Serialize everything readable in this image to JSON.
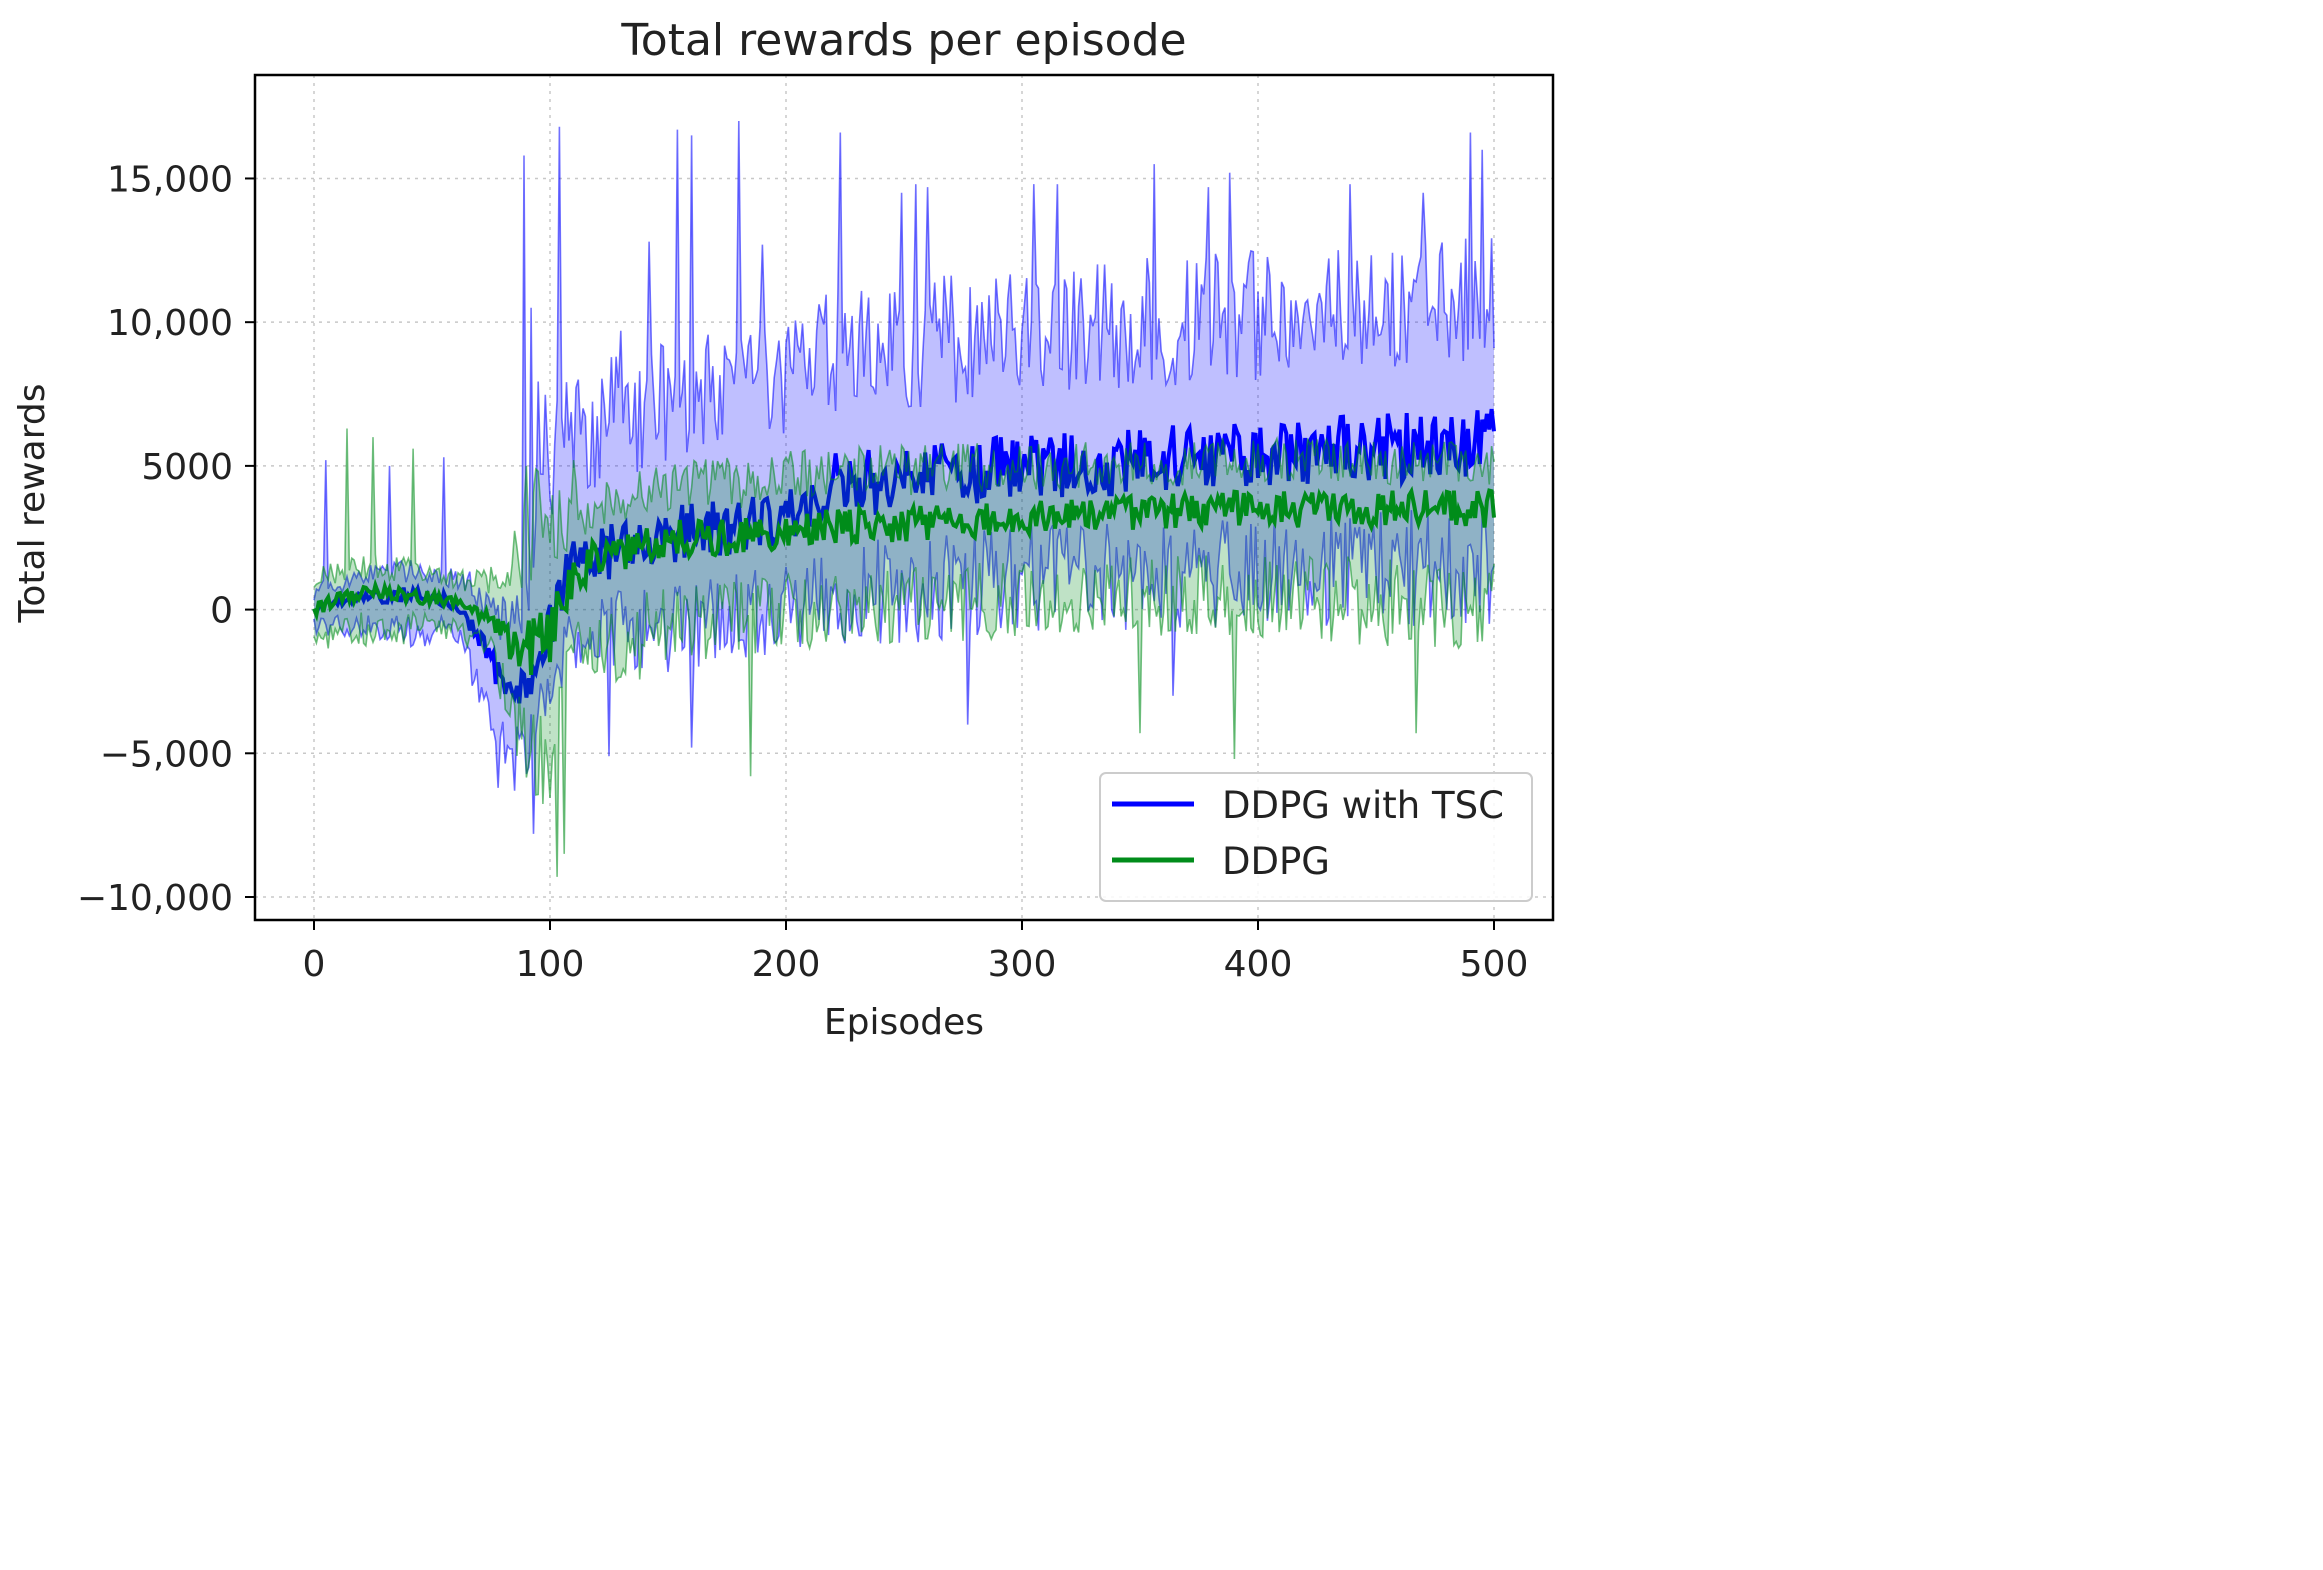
{
  "chart_data": {
    "type": "line",
    "title": "Total rewards per episode",
    "xlabel": "Episodes",
    "ylabel": "Total rewards",
    "xlim": [
      -25,
      525
    ],
    "ylim": [
      -10800,
      18600
    ],
    "x_ticks": [
      0,
      100,
      200,
      300,
      400,
      500
    ],
    "x_tick_labels": [
      "0",
      "100",
      "200",
      "300",
      "400",
      "500"
    ],
    "y_ticks": [
      -10000,
      -5000,
      0,
      5000,
      10000,
      15000
    ],
    "y_tick_labels": [
      "−10,000",
      "−5,000",
      "0",
      "5000",
      "10,000",
      "15,000"
    ],
    "grid": true,
    "legend_position": "bottom-right",
    "episodes": [
      0,
      500
    ],
    "series": [
      {
        "name": "DDPG with TSC",
        "color": "#0000ff",
        "mean": [
          [
            0,
            0
          ],
          [
            20,
            400
          ],
          [
            40,
            500
          ],
          [
            60,
            300
          ],
          [
            80,
            -2500
          ],
          [
            90,
            -2800
          ],
          [
            100,
            -400
          ],
          [
            110,
            1500
          ],
          [
            130,
            2200
          ],
          [
            150,
            2500
          ],
          [
            180,
            3000
          ],
          [
            200,
            3200
          ],
          [
            220,
            4300
          ],
          [
            250,
            4500
          ],
          [
            300,
            5000
          ],
          [
            350,
            5200
          ],
          [
            400,
            5500
          ],
          [
            450,
            5600
          ],
          [
            500,
            5800
          ]
        ],
        "upper": [
          [
            0,
            900
          ],
          [
            20,
            1600
          ],
          [
            40,
            1800
          ],
          [
            60,
            1600
          ],
          [
            80,
            700
          ],
          [
            90,
            1500
          ],
          [
            95,
            9000
          ],
          [
            110,
            8500
          ],
          [
            150,
            9500
          ],
          [
            200,
            10000
          ],
          [
            220,
            11500
          ],
          [
            250,
            11500
          ],
          [
            300,
            12000
          ],
          [
            400,
            12500
          ],
          [
            500,
            13000
          ]
        ],
        "lower": [
          [
            0,
            -900
          ],
          [
            20,
            -1000
          ],
          [
            40,
            -1300
          ],
          [
            60,
            -1400
          ],
          [
            80,
            -5500
          ],
          [
            90,
            -6000
          ],
          [
            100,
            -3500
          ],
          [
            110,
            -2200
          ],
          [
            150,
            -2200
          ],
          [
            200,
            -1500
          ],
          [
            250,
            -1200
          ],
          [
            300,
            -800
          ],
          [
            400,
            -700
          ],
          [
            500,
            -500
          ]
        ],
        "peaks": [
          [
            5,
            5200
          ],
          [
            32,
            5000
          ],
          [
            55,
            5300
          ],
          [
            89,
            15800
          ],
          [
            92,
            10500
          ],
          [
            104,
            16800
          ],
          [
            130,
            9700
          ],
          [
            142,
            12800
          ],
          [
            154,
            16700
          ],
          [
            160,
            16500
          ],
          [
            180,
            17000
          ],
          [
            190,
            12700
          ],
          [
            223,
            16600
          ],
          [
            249,
            14500
          ],
          [
            255,
            14800
          ],
          [
            260,
            14700
          ],
          [
            305,
            14800
          ],
          [
            315,
            14800
          ],
          [
            356,
            15500
          ],
          [
            379,
            14700
          ],
          [
            388,
            15200
          ],
          [
            439,
            14800
          ],
          [
            470,
            14500
          ],
          [
            490,
            16600
          ],
          [
            495,
            16000
          ]
        ],
        "dips": [
          [
            78,
            -6200
          ],
          [
            85,
            -6300
          ],
          [
            93,
            -7800
          ],
          [
            125,
            -5100
          ],
          [
            160,
            -4800
          ],
          [
            277,
            -4000
          ],
          [
            364,
            -3000
          ]
        ]
      },
      {
        "name": "DDPG",
        "color": "#008c1a",
        "mean": [
          [
            0,
            0
          ],
          [
            20,
            600
          ],
          [
            40,
            500
          ],
          [
            60,
            300
          ],
          [
            75,
            -400
          ],
          [
            85,
            -1500
          ],
          [
            95,
            -1200
          ],
          [
            100,
            -800
          ],
          [
            110,
            1200
          ],
          [
            120,
            1800
          ],
          [
            150,
            2500
          ],
          [
            180,
            2500
          ],
          [
            200,
            2800
          ],
          [
            250,
            3000
          ],
          [
            300,
            3200
          ],
          [
            350,
            3400
          ],
          [
            400,
            3500
          ],
          [
            450,
            3500
          ],
          [
            500,
            3500
          ]
        ],
        "upper": [
          [
            0,
            1400
          ],
          [
            20,
            2000
          ],
          [
            40,
            1800
          ],
          [
            60,
            1400
          ],
          [
            75,
            1500
          ],
          [
            85,
            4400
          ],
          [
            95,
            5000
          ],
          [
            110,
            4600
          ],
          [
            150,
            5200
          ],
          [
            200,
            5500
          ],
          [
            250,
            5800
          ],
          [
            300,
            5800
          ],
          [
            400,
            6000
          ],
          [
            500,
            5800
          ]
        ],
        "lower": [
          [
            0,
            -1400
          ],
          [
            20,
            -1300
          ],
          [
            40,
            -1200
          ],
          [
            60,
            -1000
          ],
          [
            75,
            -2000
          ],
          [
            85,
            -5000
          ],
          [
            100,
            -8500
          ],
          [
            110,
            -3500
          ],
          [
            150,
            -2000
          ],
          [
            200,
            -1500
          ],
          [
            250,
            -1200
          ],
          [
            300,
            -1000
          ],
          [
            400,
            -1000
          ],
          [
            500,
            -1500
          ]
        ],
        "peaks": [
          [
            14,
            6300
          ],
          [
            25,
            6000
          ],
          [
            42,
            5600
          ],
          [
            90,
            5000
          ],
          [
            110,
            5200
          ]
        ],
        "dips": [
          [
            103,
            -9300
          ],
          [
            106,
            -8500
          ],
          [
            185,
            -5800
          ],
          [
            350,
            -4300
          ],
          [
            390,
            -5200
          ],
          [
            467,
            -4300
          ]
        ]
      }
    ]
  }
}
